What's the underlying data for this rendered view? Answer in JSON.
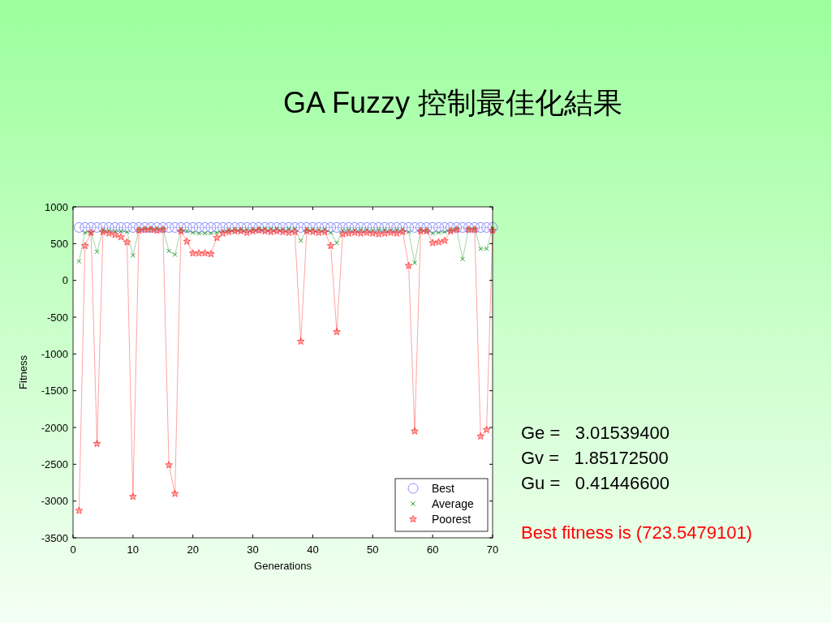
{
  "chart_data": {
    "type": "line",
    "title": "GA Fuzzy 控制最佳化結果",
    "xlabel": "Generations",
    "ylabel": "Fitness",
    "x": [
      1,
      2,
      3,
      4,
      5,
      6,
      7,
      8,
      9,
      10,
      11,
      12,
      13,
      14,
      15,
      16,
      17,
      18,
      19,
      20,
      21,
      22,
      23,
      24,
      25,
      26,
      27,
      28,
      29,
      30,
      31,
      32,
      33,
      34,
      35,
      36,
      37,
      38,
      39,
      40,
      41,
      42,
      43,
      44,
      45,
      46,
      47,
      48,
      49,
      50,
      51,
      52,
      53,
      54,
      55,
      56,
      57,
      58,
      59,
      60,
      61,
      62,
      63,
      64,
      65,
      66,
      67,
      68,
      69,
      70
    ],
    "series": [
      {
        "name": "Best",
        "color": "#8080ff",
        "marker": "circle",
        "values": [
          720,
          720,
          720,
          720,
          720,
          720,
          720,
          720,
          720,
          720,
          720,
          720,
          720,
          720,
          720,
          720,
          720,
          720,
          720,
          720,
          720,
          720,
          720,
          720,
          720,
          720,
          720,
          720,
          720,
          720,
          720,
          720,
          720,
          720,
          720,
          720,
          720,
          720,
          720,
          720,
          720,
          720,
          720,
          720,
          720,
          720,
          720,
          720,
          720,
          720,
          720,
          720,
          720,
          720,
          720,
          720,
          720,
          720,
          720,
          720,
          720,
          720,
          720,
          720,
          720,
          720,
          720,
          720,
          720,
          720
        ]
      },
      {
        "name": "Average",
        "color": "#2e9e2e",
        "marker": "cross",
        "values": [
          260,
          650,
          650,
          390,
          680,
          680,
          670,
          670,
          660,
          340,
          690,
          700,
          700,
          700,
          700,
          400,
          350,
          690,
          670,
          650,
          640,
          640,
          640,
          650,
          670,
          680,
          690,
          690,
          690,
          690,
          700,
          700,
          700,
          700,
          690,
          700,
          700,
          540,
          690,
          690,
          690,
          690,
          650,
          510,
          680,
          690,
          680,
          690,
          690,
          680,
          690,
          690,
          680,
          690,
          690,
          660,
          240,
          690,
          680,
          640,
          650,
          660,
          680,
          700,
          290,
          700,
          700,
          430,
          430,
          700
        ]
      },
      {
        "name": "Poorest",
        "color": "#ff3030",
        "marker": "star",
        "values": [
          -3130,
          470,
          650,
          -2220,
          660,
          640,
          620,
          590,
          520,
          -2940,
          680,
          690,
          690,
          680,
          690,
          -2510,
          -2900,
          670,
          530,
          370,
          370,
          370,
          360,
          580,
          640,
          660,
          670,
          670,
          650,
          670,
          680,
          670,
          660,
          670,
          660,
          650,
          660,
          -830,
          670,
          660,
          650,
          660,
          470,
          -700,
          630,
          640,
          650,
          640,
          650,
          640,
          630,
          640,
          650,
          640,
          660,
          200,
          -2050,
          670,
          670,
          510,
          520,
          540,
          670,
          690,
          null,
          690,
          690,
          -2120,
          -2030,
          680
        ]
      }
    ],
    "xlim": [
      0,
      70
    ],
    "xticks": [
      0,
      10,
      20,
      30,
      40,
      50,
      60,
      70
    ],
    "ylim": [
      -3500,
      1000
    ],
    "yticks": [
      1000,
      500,
      0,
      -500,
      -1000,
      -1500,
      -2000,
      -2500,
      -3000,
      -3500
    ],
    "legend": "bottom right",
    "annotations": [
      "Ge =   3.01539400",
      "Gv =   1.85172500",
      "Gu =   0.41446600",
      "Best fitness is (723.5479101)"
    ]
  }
}
